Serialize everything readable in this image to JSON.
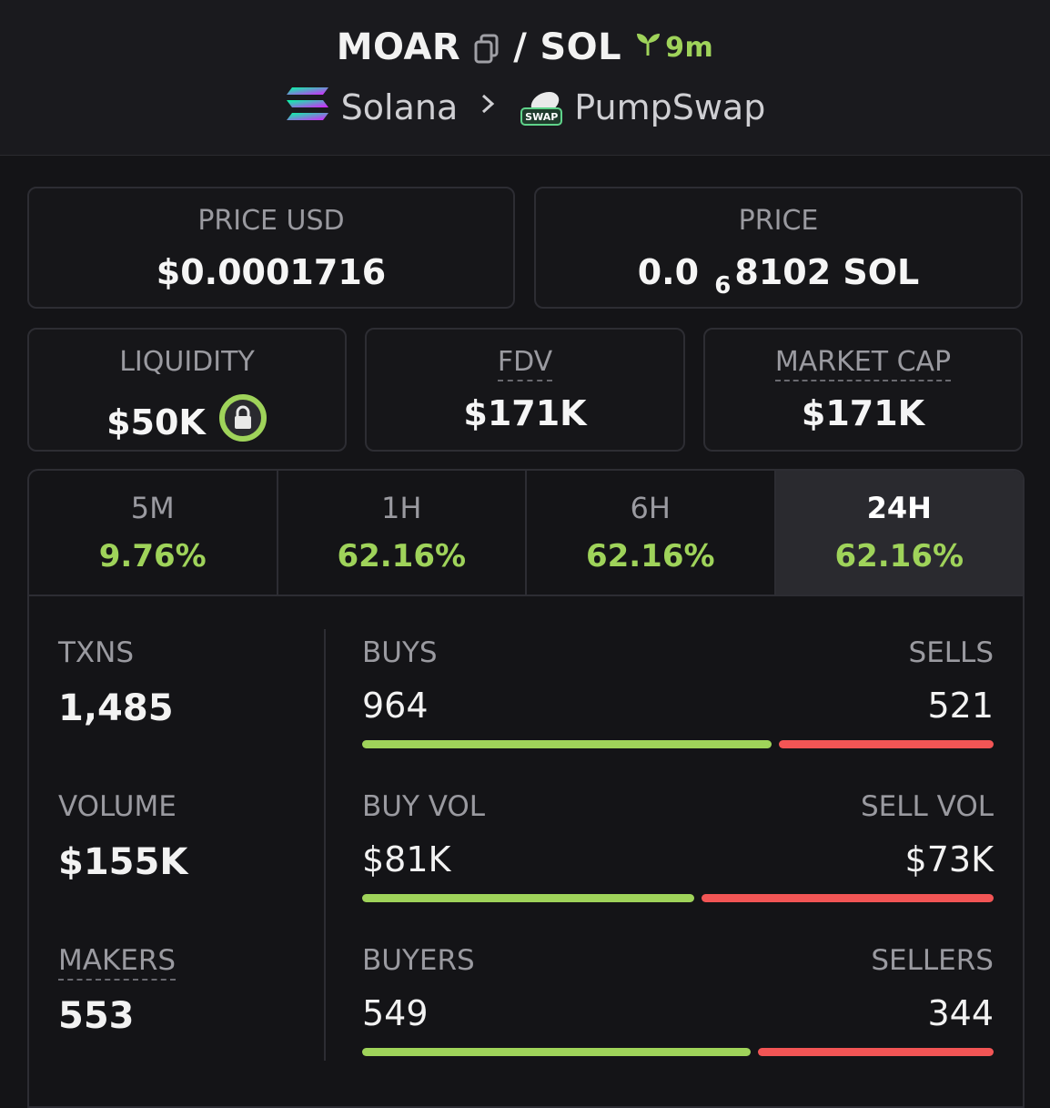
{
  "header": {
    "base_token": "MOAR",
    "separator": "/",
    "quote_token": "SOL",
    "age": "9m",
    "chain": "Solana",
    "dex": "PumpSwap",
    "dex_badge": "SWAP"
  },
  "prices": {
    "price_usd_label": "PRICE USD",
    "price_usd_value": "$0.0001716",
    "price_label": "PRICE",
    "price_prefix": "0.0",
    "price_zero_count": "6",
    "price_digits": "8102",
    "price_unit": "SOL"
  },
  "metrics": {
    "liquidity_label": "LIQUIDITY",
    "liquidity_value": "$50K",
    "fdv_label": "FDV",
    "fdv_value": "$171K",
    "mcap_label": "MARKET CAP",
    "mcap_value": "$171K"
  },
  "tabs": [
    {
      "label": "5M",
      "value": "9.76%"
    },
    {
      "label": "1H",
      "value": "62.16%"
    },
    {
      "label": "6H",
      "value": "62.16%"
    },
    {
      "label": "24H",
      "value": "62.16%"
    }
  ],
  "active_tab": "24H",
  "stats": {
    "txns_label": "TXNS",
    "txns_value": "1,485",
    "volume_label": "VOLUME",
    "volume_value": "$155K",
    "makers_label": "MAKERS",
    "makers_value": "553"
  },
  "splits": {
    "buys_label": "BUYS",
    "buys_value": "964",
    "sells_label": "SELLS",
    "sells_value": "521",
    "buys_fraction": 0.649,
    "buyvol_label": "BUY VOL",
    "buyvol_value": "$81K",
    "sellvol_label": "SELL VOL",
    "sellvol_value": "$73K",
    "buyvol_fraction": 0.526,
    "buyers_label": "BUYERS",
    "buyers_value": "549",
    "sellers_label": "SELLERS",
    "sellers_value": "344",
    "buyers_fraction": 0.615
  },
  "colors": {
    "green": "#9fd35a",
    "red": "#f25555",
    "background": "#141417"
  },
  "icons": [
    "copy-icon",
    "seedling-icon",
    "solana-logo-icon",
    "chevron-right-icon",
    "pumpswap-logo-icon",
    "lock-icon"
  ]
}
